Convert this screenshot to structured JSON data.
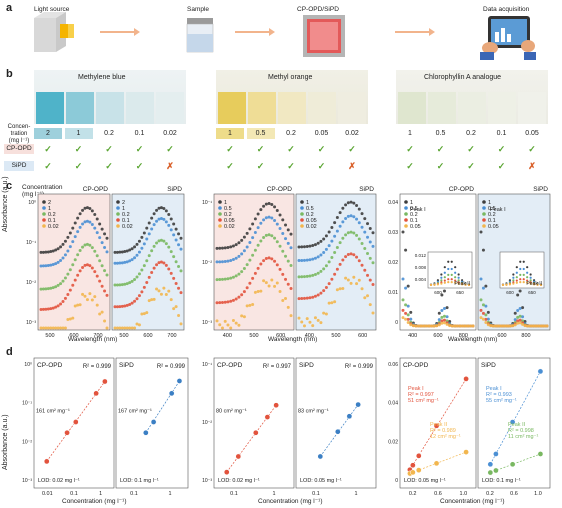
{
  "panels": {
    "a": "a",
    "b": "b",
    "c": "c",
    "d": "d"
  },
  "workflow": {
    "steps": [
      "Light source",
      "Sample",
      "CP-OPD/SiPD",
      "Data acquisition"
    ]
  },
  "b": {
    "dyes": [
      "Methylene blue",
      "Methyl orange",
      "Chlorophyllin A analogue"
    ],
    "conc_label": [
      "Concen-",
      "tration",
      "(mg l⁻¹)"
    ],
    "detectors": [
      "CP-OPD",
      "SiPD"
    ],
    "groups": [
      {
        "conc": [
          "2",
          "1",
          "0.2",
          "0.1",
          "0.02"
        ],
        "cp": [
          "✓",
          "✓",
          "✓",
          "✓",
          "✓"
        ],
        "si": [
          "✓",
          "✓",
          "✓",
          "✓",
          "✗"
        ]
      },
      {
        "conc": [
          "1",
          "0.5",
          "0.2",
          "0.05",
          "0.02"
        ],
        "cp": [
          "✓",
          "✓",
          "✓",
          "✓",
          "✓"
        ],
        "si": [
          "✓",
          "✓",
          "✓",
          "✓",
          "✗"
        ]
      },
      {
        "conc": [
          "1",
          "0.5",
          "0.2",
          "0.1",
          "0.05"
        ],
        "cp": [
          "✓",
          "✓",
          "✓",
          "✓",
          "✓"
        ],
        "si": [
          "✓",
          "✓",
          "✓",
          "✓",
          "✗"
        ]
      }
    ],
    "colors": {
      "check": "#5aa532",
      "cross": "#d9602a",
      "cp_chip": "#f7e0dc",
      "si_chip": "#dce9f5"
    }
  },
  "c": {
    "ylabel": "Absorbance (a.u.)",
    "xlabel": "Wavelength (nm)",
    "conc_title": [
      "Concentration",
      "(mg l⁻¹)"
    ],
    "peak1": "Peak I",
    "peak2": "Peak II",
    "plots": [
      {
        "title": "CP-OPD",
        "legend": [
          "2",
          "1",
          "0.2",
          "0.1",
          "0.02"
        ],
        "ticks_x": [
          "500",
          "600",
          "700"
        ],
        "ticks_y": [
          "10⁰",
          "10⁻¹",
          "10⁻²",
          "10⁻³"
        ]
      },
      {
        "title": "SiPD",
        "legend": [
          "2",
          "1",
          "0.2",
          "0.1",
          "0.02"
        ],
        "ticks_x": [
          "500",
          "600",
          "700"
        ]
      },
      {
        "title": "CP-OPD",
        "legend": [
          "1",
          "0.5",
          "0.2",
          "0.05",
          "0.02"
        ],
        "ticks_x": [
          "400",
          "500",
          "600"
        ],
        "ticks_y": [
          "10⁻¹",
          "10⁻²",
          "10⁻³"
        ]
      },
      {
        "title": "SiPD",
        "legend": [
          "1",
          "0.5",
          "0.2",
          "0.05",
          "0.02"
        ],
        "ticks_x": [
          "400",
          "500",
          "600"
        ]
      },
      {
        "title": "CP-OPD",
        "legend": [
          "1",
          "0.5",
          "0.2",
          "0.1",
          "0.05"
        ],
        "ticks_x": [
          "400",
          "600",
          "800"
        ],
        "ticks_y": [
          "0.04",
          "0.03",
          "0.02",
          "0.01",
          "0"
        ]
      },
      {
        "title": "SiPD",
        "legend": [
          "1",
          "0.5",
          "0.2",
          "0.1",
          "0.05"
        ],
        "ticks_x": [
          "600",
          "800"
        ]
      }
    ],
    "inset_ticks": [
      "0.012",
      "0.008",
      "0.004"
    ],
    "inset_x": [
      "600",
      "650"
    ],
    "series_colors": [
      "#3d3d3d",
      "#4a8fd4",
      "#79b861",
      "#e2533d",
      "#f2b64e"
    ]
  },
  "d": {
    "ylabel": "Absorbance (a.u.)",
    "xlabel": "Concentration (mg l⁻¹)",
    "plots": [
      {
        "title": "CP-OPD",
        "r2": "R² = 0.999",
        "slope": "161 cm² mg⁻¹",
        "lod": "LOD: 0.02 mg l⁻¹",
        "color": "#e2533d",
        "ticks_y": [
          "10⁰",
          "10⁻¹",
          "10⁻²",
          "10⁻³"
        ],
        "ticks_x": [
          "0.01",
          "0.1",
          "1"
        ]
      },
      {
        "title": "SiPD",
        "r2": "R² = 0.999",
        "slope": "167 cm² mg⁻¹",
        "lod": "LOD: 0.1 mg l⁻¹",
        "color": "#3b7fc4",
        "ticks_x": [
          "0.1",
          "1"
        ]
      },
      {
        "title": "CP-OPD",
        "r2": "R² = 0.997",
        "slope": "80 cm² mg⁻¹",
        "lod": "LOD: 0.02 mg l⁻¹",
        "color": "#e2533d",
        "ticks_y": [
          "10⁻¹",
          "10⁻²",
          "10⁻³"
        ],
        "ticks_x": [
          "0.1",
          "1"
        ]
      },
      {
        "title": "SiPD",
        "r2": "R² = 0.999",
        "slope": "83 cm² mg⁻¹",
        "lod": "LOD: 0.05 mg l⁻¹",
        "color": "#3b7fc4",
        "ticks_x": [
          "0.1",
          "1"
        ]
      },
      {
        "title": "CP-OPD",
        "peak1": [
          "Peak I",
          "R² = 0.997",
          "51 cm² mg⁻¹"
        ],
        "peak2": [
          "Peak II",
          "R² = 0.989",
          "12 cm² mg⁻¹"
        ],
        "lod": "LOD: 0.05 mg l⁻¹",
        "ticks_y": [
          "0.06",
          "0.04",
          "0.02",
          "0"
        ],
        "ticks_x": [
          "0.2",
          "0.6",
          "1.0"
        ]
      },
      {
        "title": "SiPD",
        "peak1": [
          "Peak I",
          "R² = 0.993",
          "55 cm² mg⁻¹"
        ],
        "peak2": [
          "Peak II",
          "R² = 0.998",
          "11 cm² mg⁻¹"
        ],
        "lod": "LOD: 0.1 mg l⁻¹",
        "ticks_x": [
          "0.2",
          "0.6",
          "1.0"
        ]
      }
    ]
  },
  "chart_data": [
    {
      "type": "scatter",
      "title": "",
      "xlabel": "Concentration (mg l⁻¹)",
      "ylabel": "Absorbance (a.u.)",
      "series": [
        {
          "name": "CP-OPD",
          "x": [
            0.02,
            0.1,
            0.2,
            1,
            2
          ],
          "y": [
            0.003,
            0.016,
            0.03,
            0.16,
            0.32
          ]
        }
      ]
    },
    {
      "type": "scatter",
      "xlabel": "Concentration (mg l⁻¹)",
      "ylabel": "Absorbance (a.u.)",
      "series": [
        {
          "name": "SiPD",
          "x": [
            0.1,
            0.2,
            1,
            2
          ],
          "y": [
            0.016,
            0.03,
            0.16,
            0.33
          ]
        }
      ]
    },
    {
      "type": "scatter",
      "xlabel": "Concentration (mg l⁻¹)",
      "ylabel": "Absorbance (a.u.)",
      "series": [
        {
          "name": "CP-OPD",
          "x": [
            0.02,
            0.05,
            0.2,
            0.5,
            1
          ],
          "y": [
            0.0016,
            0.004,
            0.016,
            0.04,
            0.08
          ]
        }
      ]
    },
    {
      "type": "scatter",
      "xlabel": "Concentration (mg l⁻¹)",
      "ylabel": "Absorbance (a.u.)",
      "series": [
        {
          "name": "SiPD",
          "x": [
            0.05,
            0.2,
            0.5,
            1
          ],
          "y": [
            0.004,
            0.017,
            0.042,
            0.083
          ]
        }
      ]
    },
    {
      "type": "scatter",
      "xlabel": "Concentration (mg l⁻¹)",
      "ylabel": "Absorbance (a.u.)",
      "series": [
        {
          "name": "Peak I",
          "x": [
            0.05,
            0.1,
            0.2,
            0.5,
            1
          ],
          "y": [
            0.0026,
            0.005,
            0.01,
            0.026,
            0.051
          ]
        },
        {
          "name": "Peak II",
          "x": [
            0.05,
            0.1,
            0.2,
            0.5,
            1
          ],
          "y": [
            0.0006,
            0.0012,
            0.0024,
            0.006,
            0.012
          ]
        }
      ]
    },
    {
      "type": "scatter",
      "xlabel": "Concentration (mg l⁻¹)",
      "ylabel": "Absorbance (a.u.)",
      "series": [
        {
          "name": "Peak I",
          "x": [
            0.1,
            0.2,
            0.5,
            1
          ],
          "y": [
            0.0055,
            0.011,
            0.028,
            0.055
          ]
        },
        {
          "name": "Peak II",
          "x": [
            0.1,
            0.2,
            0.5,
            1
          ],
          "y": [
            0.0011,
            0.0022,
            0.0055,
            0.011
          ]
        }
      ]
    }
  ]
}
